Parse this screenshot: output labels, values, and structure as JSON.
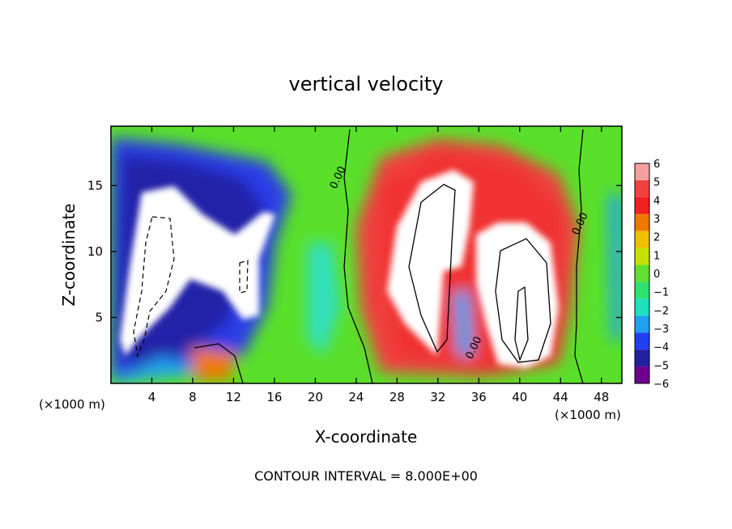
{
  "chart_data": {
    "type": "heatmap",
    "title": "vertical velocity",
    "xlabel": "X-coordinate",
    "ylabel": "Z-coordinate",
    "x_unit": "(×1000 m)",
    "x_unit_right": "(×1000 m)",
    "xlim": [
      0,
      50
    ],
    "ylim": [
      0,
      19.5
    ],
    "xticks": [
      4,
      8,
      12,
      16,
      20,
      24,
      28,
      32,
      36,
      40,
      44,
      48
    ],
    "yticks": [
      5,
      10,
      15
    ],
    "colorbar": {
      "levels": [
        6,
        5,
        4,
        3,
        2,
        1,
        0,
        -1,
        -2,
        -3,
        -4,
        -5,
        -6
      ],
      "labels": [
        "6",
        "5",
        "4",
        "3",
        "2",
        "1",
        "0",
        "−1",
        "−2",
        "−3",
        "−4",
        "−5",
        "−6"
      ],
      "colors": [
        "#f5a0a0",
        "#f04040",
        "#f02020",
        "#f07800",
        "#f0c000",
        "#c8e000",
        "#60e030",
        "#30e070",
        "#20e0c0",
        "#20a0f0",
        "#2040f0",
        "#2020a0",
        "#700090"
      ]
    },
    "features": [
      {
        "kind": "downdraft",
        "sign": "negative",
        "x_range": [
          1,
          15
        ],
        "z_range": [
          1.5,
          15.3
        ]
      },
      {
        "kind": "updraft",
        "sign": "positive",
        "x_range": [
          26,
          44
        ],
        "z_range": [
          1,
          18.5
        ]
      }
    ],
    "contour_labels": [
      {
        "text": "0.00",
        "x": 22.5,
        "z": 15.5
      },
      {
        "text": "0.00",
        "x": 35.8,
        "z": 2.6
      },
      {
        "text": "0.00",
        "x": 46.2,
        "z": 12.0
      }
    ],
    "footer": "CONTOUR INTERVAL = 8.000E+00"
  }
}
